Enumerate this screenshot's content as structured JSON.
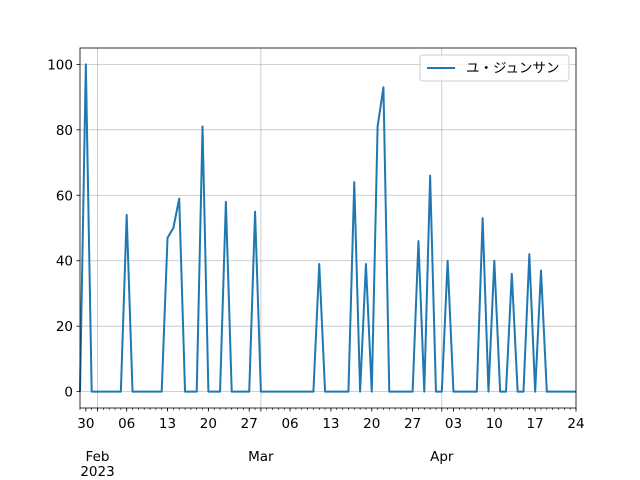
{
  "chart_data": {
    "type": "line",
    "title": "",
    "xlabel": "",
    "ylabel": "",
    "legend_position": "top-right",
    "grid": true,
    "x_axis": {
      "type": "date",
      "range": [
        "2023-01-29",
        "2023-04-24"
      ],
      "major_ticks": [
        {
          "date": "2023-01-30",
          "label": "30"
        },
        {
          "date": "2023-02-06",
          "label": "06"
        },
        {
          "date": "2023-02-13",
          "label": "13"
        },
        {
          "date": "2023-02-20",
          "label": "20"
        },
        {
          "date": "2023-02-27",
          "label": "27"
        },
        {
          "date": "2023-03-06",
          "label": "06"
        },
        {
          "date": "2023-03-13",
          "label": "13"
        },
        {
          "date": "2023-03-20",
          "label": "20"
        },
        {
          "date": "2023-03-27",
          "label": "27"
        },
        {
          "date": "2023-04-03",
          "label": "03"
        },
        {
          "date": "2023-04-10",
          "label": "10"
        },
        {
          "date": "2023-04-17",
          "label": "17"
        },
        {
          "date": "2023-04-24",
          "label": "24"
        }
      ],
      "month_labels": [
        {
          "date": "2023-02-01",
          "label": "Feb",
          "sublabel": "2023"
        },
        {
          "date": "2023-03-01",
          "label": "Mar",
          "sublabel": ""
        },
        {
          "date": "2023-04-01",
          "label": "Apr",
          "sublabel": ""
        }
      ]
    },
    "y_axis": {
      "range": [
        -5,
        105
      ],
      "ticks": [
        0,
        20,
        40,
        60,
        80,
        100
      ]
    },
    "series": [
      {
        "name": "ユ・ジュンサン",
        "color": "#1f77b4",
        "points": [
          [
            "2023-01-29",
            0
          ],
          [
            "2023-01-30",
            100
          ],
          [
            "2023-01-31",
            0
          ],
          [
            "2023-02-01",
            0
          ],
          [
            "2023-02-02",
            0
          ],
          [
            "2023-02-03",
            0
          ],
          [
            "2023-02-04",
            0
          ],
          [
            "2023-02-05",
            0
          ],
          [
            "2023-02-06",
            54
          ],
          [
            "2023-02-07",
            0
          ],
          [
            "2023-02-08",
            0
          ],
          [
            "2023-02-09",
            0
          ],
          [
            "2023-02-10",
            0
          ],
          [
            "2023-02-11",
            0
          ],
          [
            "2023-02-12",
            0
          ],
          [
            "2023-02-13",
            47
          ],
          [
            "2023-02-14",
            50
          ],
          [
            "2023-02-15",
            59
          ],
          [
            "2023-02-16",
            0
          ],
          [
            "2023-02-17",
            0
          ],
          [
            "2023-02-18",
            0
          ],
          [
            "2023-02-19",
            81
          ],
          [
            "2023-02-20",
            0
          ],
          [
            "2023-02-21",
            0
          ],
          [
            "2023-02-22",
            0
          ],
          [
            "2023-02-23",
            58
          ],
          [
            "2023-02-24",
            0
          ],
          [
            "2023-02-25",
            0
          ],
          [
            "2023-02-26",
            0
          ],
          [
            "2023-02-27",
            0
          ],
          [
            "2023-02-28",
            55
          ],
          [
            "2023-03-01",
            0
          ],
          [
            "2023-03-02",
            0
          ],
          [
            "2023-03-03",
            0
          ],
          [
            "2023-03-04",
            0
          ],
          [
            "2023-03-05",
            0
          ],
          [
            "2023-03-06",
            0
          ],
          [
            "2023-03-07",
            0
          ],
          [
            "2023-03-08",
            0
          ],
          [
            "2023-03-09",
            0
          ],
          [
            "2023-03-10",
            0
          ],
          [
            "2023-03-11",
            39
          ],
          [
            "2023-03-12",
            0
          ],
          [
            "2023-03-13",
            0
          ],
          [
            "2023-03-14",
            0
          ],
          [
            "2023-03-15",
            0
          ],
          [
            "2023-03-16",
            0
          ],
          [
            "2023-03-17",
            64
          ],
          [
            "2023-03-18",
            0
          ],
          [
            "2023-03-19",
            39
          ],
          [
            "2023-03-20",
            0
          ],
          [
            "2023-03-21",
            81
          ],
          [
            "2023-03-22",
            93
          ],
          [
            "2023-03-23",
            0
          ],
          [
            "2023-03-24",
            0
          ],
          [
            "2023-03-25",
            0
          ],
          [
            "2023-03-26",
            0
          ],
          [
            "2023-03-27",
            0
          ],
          [
            "2023-03-28",
            46
          ],
          [
            "2023-03-29",
            0
          ],
          [
            "2023-03-30",
            66
          ],
          [
            "2023-03-31",
            0
          ],
          [
            "2023-04-01",
            0
          ],
          [
            "2023-04-02",
            40
          ],
          [
            "2023-04-03",
            0
          ],
          [
            "2023-04-04",
            0
          ],
          [
            "2023-04-05",
            0
          ],
          [
            "2023-04-06",
            0
          ],
          [
            "2023-04-07",
            0
          ],
          [
            "2023-04-08",
            53
          ],
          [
            "2023-04-09",
            0
          ],
          [
            "2023-04-10",
            40
          ],
          [
            "2023-04-11",
            0
          ],
          [
            "2023-04-12",
            0
          ],
          [
            "2023-04-13",
            36
          ],
          [
            "2023-04-14",
            0
          ],
          [
            "2023-04-15",
            0
          ],
          [
            "2023-04-16",
            42
          ],
          [
            "2023-04-17",
            0
          ],
          [
            "2023-04-18",
            37
          ],
          [
            "2023-04-19",
            0
          ],
          [
            "2023-04-20",
            0
          ],
          [
            "2023-04-21",
            0
          ],
          [
            "2023-04-22",
            0
          ],
          [
            "2023-04-23",
            0
          ],
          [
            "2023-04-24",
            0
          ]
        ]
      }
    ]
  }
}
